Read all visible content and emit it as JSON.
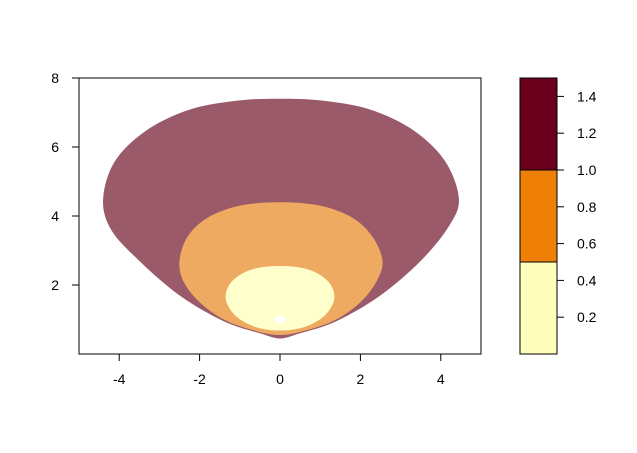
{
  "chart_data": {
    "type": "area",
    "title": "",
    "xlabel": "",
    "ylabel": "",
    "xlim": [
      -5,
      5
    ],
    "ylim": [
      0,
      8
    ],
    "x_ticks": [
      -4,
      -2,
      0,
      2,
      4
    ],
    "y_ticks": [
      2,
      4,
      6,
      8
    ],
    "x_tick_labels": [
      "-4",
      "-2",
      "0",
      "2",
      "4"
    ],
    "y_tick_labels": [
      "2",
      "4",
      "6",
      "8"
    ],
    "grid": false,
    "legend_position": "right",
    "regions": [
      {
        "level_range": [
          1.0,
          1.5
        ],
        "color": "#9B5A6A",
        "boundary": [
          [
            -4.4,
            4.5
          ],
          [
            -4.1,
            5.6
          ],
          [
            -3.3,
            6.5
          ],
          [
            -2.2,
            7.1
          ],
          [
            -1,
            7.35
          ],
          [
            0,
            7.4
          ],
          [
            1,
            7.35
          ],
          [
            2.2,
            7.1
          ],
          [
            3.3,
            6.5
          ],
          [
            4.1,
            5.6
          ],
          [
            4.45,
            4.5
          ],
          [
            4.2,
            3.7
          ],
          [
            3.5,
            2.7
          ],
          [
            2.5,
            1.7
          ],
          [
            1.4,
            0.95
          ],
          [
            0.5,
            0.6
          ],
          [
            0,
            0.45
          ],
          [
            -0.5,
            0.6
          ],
          [
            -1.4,
            0.95
          ],
          [
            -2.5,
            1.7
          ],
          [
            -3.5,
            2.7
          ],
          [
            -4.2,
            3.6
          ]
        ]
      },
      {
        "level_range": [
          0.5,
          1.0
        ],
        "color": "#EEAA60",
        "boundary": [
          [
            -2.5,
            2.7
          ],
          [
            -2.3,
            3.4
          ],
          [
            -1.8,
            3.95
          ],
          [
            -1,
            4.3
          ],
          [
            0,
            4.4
          ],
          [
            1,
            4.3
          ],
          [
            1.8,
            3.95
          ],
          [
            2.3,
            3.4
          ],
          [
            2.55,
            2.7
          ],
          [
            2.4,
            2.1
          ],
          [
            2,
            1.5
          ],
          [
            1.4,
            1
          ],
          [
            0.7,
            0.7
          ],
          [
            0,
            0.55
          ],
          [
            -0.7,
            0.7
          ],
          [
            -1.4,
            1
          ],
          [
            -2,
            1.5
          ],
          [
            -2.4,
            2.1
          ]
        ]
      },
      {
        "level_range": [
          0,
          0.5
        ],
        "color": "#FFFFCC",
        "boundary": [
          [
            -1.35,
            1.6
          ],
          [
            -1.2,
            2.1
          ],
          [
            -0.7,
            2.45
          ],
          [
            0,
            2.55
          ],
          [
            0.7,
            2.45
          ],
          [
            1.2,
            2.1
          ],
          [
            1.35,
            1.6
          ],
          [
            1.1,
            1.1
          ],
          [
            0.6,
            0.78
          ],
          [
            0,
            0.68
          ],
          [
            -0.6,
            0.78
          ],
          [
            -1.1,
            1.1
          ]
        ]
      },
      {
        "level_range": [
          0,
          0.1
        ],
        "color": "#FFFFFF",
        "boundary": [
          [
            -0.15,
            1.0
          ],
          [
            -0.1,
            1.08
          ],
          [
            0,
            1.1
          ],
          [
            0.1,
            1.08
          ],
          [
            0.15,
            1.0
          ],
          [
            0.1,
            0.92
          ],
          [
            0,
            0.9
          ],
          [
            -0.1,
            0.92
          ]
        ]
      }
    ],
    "colorbar": {
      "lim": [
        0,
        1.5
      ],
      "ticks": [
        0.2,
        0.4,
        0.6,
        0.8,
        1.0,
        1.2,
        1.4
      ],
      "tick_labels": [
        "0.2",
        "0.4",
        "0.6",
        "0.8",
        "1.0",
        "1.2",
        "1.4"
      ],
      "bands": [
        {
          "from": 0,
          "to": 0.5,
          "color": "#FFFFBB"
        },
        {
          "from": 0.5,
          "to": 1.0,
          "color": "#EE8008"
        },
        {
          "from": 1.0,
          "to": 1.5,
          "color": "#6A001E"
        }
      ]
    }
  }
}
